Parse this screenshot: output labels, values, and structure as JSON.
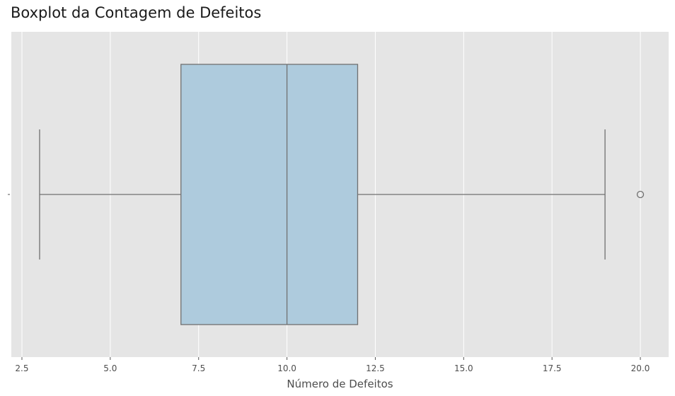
{
  "chart_data": {
    "type": "boxplot",
    "title": "Boxplot da Contagem de Defeitos",
    "xlabel": "Número de Defeitos",
    "ylabel": "",
    "xlim": [
      2.2,
      20.8
    ],
    "xticks": [
      2.5,
      5.0,
      7.5,
      10.0,
      12.5,
      15.0,
      17.5,
      20.0
    ],
    "xtick_labels": [
      "2.5",
      "5.0",
      "7.5",
      "10.0",
      "12.5",
      "15.0",
      "17.5",
      "20.0"
    ],
    "grid": true,
    "orientation": "horizontal",
    "box": {
      "whisker_low": 3,
      "q1": 7,
      "median": 10,
      "q3": 12,
      "whisker_high": 19,
      "outliers": [
        20
      ]
    },
    "colors": {
      "box_fill": "#aecbdd",
      "line": "#707070",
      "plot_background": "#e5e5e5",
      "grid": "#ffffff"
    }
  }
}
